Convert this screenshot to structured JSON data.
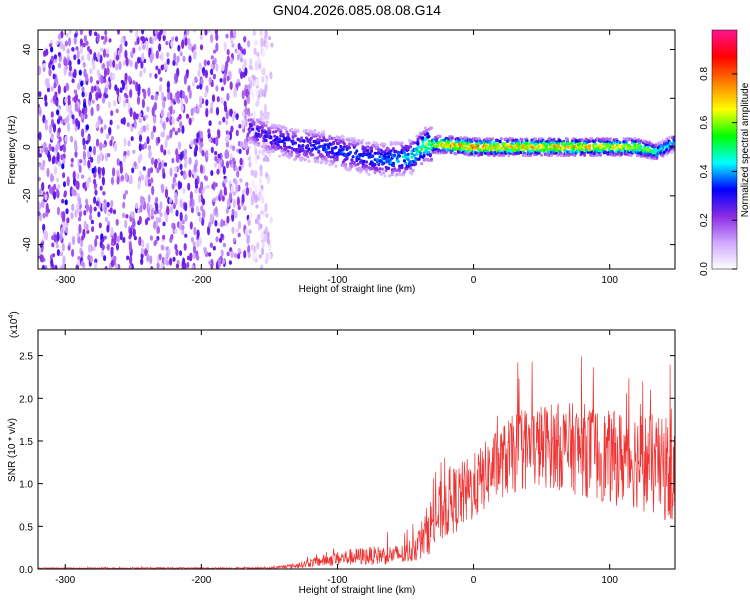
{
  "title": "GN04.2026.085.08.08.G14",
  "chart_data": [
    {
      "type": "heatmap",
      "name": "spectrogram",
      "xlabel": "Height of straight line (km)",
      "ylabel": "Frequency (Hz)",
      "xlim": [
        -320,
        148
      ],
      "ylim": [
        -50,
        48
      ],
      "xticks": [
        -300,
        -200,
        -100,
        0,
        100
      ],
      "yticks": [
        -40,
        -20,
        0,
        20,
        40
      ],
      "noise_region_x": [
        -320,
        -148
      ],
      "signal_track": [
        {
          "x": -165,
          "freq": 8,
          "amp": 0.3
        },
        {
          "x": -150,
          "freq": 4,
          "amp": 0.33
        },
        {
          "x": -130,
          "freq": 1,
          "amp": 0.36
        },
        {
          "x": -110,
          "freq": 0,
          "amp": 0.38
        },
        {
          "x": -90,
          "freq": -3,
          "amp": 0.4
        },
        {
          "x": -70,
          "freq": -5,
          "amp": 0.42
        },
        {
          "x": -58,
          "freq": -5,
          "amp": 0.45
        },
        {
          "x": -45,
          "freq": -4,
          "amp": 0.5
        },
        {
          "x": -35,
          "freq": 1,
          "amp": 0.62
        },
        {
          "x": -20,
          "freq": 1,
          "amp": 0.78
        },
        {
          "x": 0,
          "freq": 0,
          "amp": 0.85
        },
        {
          "x": 25,
          "freq": 0,
          "amp": 0.8
        },
        {
          "x": 50,
          "freq": 0,
          "amp": 0.78
        },
        {
          "x": 75,
          "freq": 0,
          "amp": 0.8
        },
        {
          "x": 100,
          "freq": 0,
          "amp": 0.76
        },
        {
          "x": 120,
          "freq": 0,
          "amp": 0.72
        },
        {
          "x": 135,
          "freq": -2,
          "amp": 0.55
        },
        {
          "x": 148,
          "freq": 2,
          "amp": 0.45
        }
      ]
    },
    {
      "type": "line",
      "name": "snr",
      "xlabel": "Height of straight line (km)",
      "ylabel": "SNR (10 * v/v)",
      "scale_label": "(x10",
      "scale_exp": "4",
      "color": "#ee3333",
      "xlim": [
        -320,
        148
      ],
      "ylim": [
        0,
        2.8
      ],
      "xticks": [
        -300,
        -200,
        -100,
        0,
        100
      ],
      "yticks": [
        0.0,
        0.5,
        1.0,
        1.5,
        2.0,
        2.5
      ],
      "ytick_labels": [
        "0.0",
        "0.5",
        "1.0",
        "1.5",
        "2.0",
        "2.5"
      ],
      "envelope": [
        {
          "x": -320,
          "mean": 0.01,
          "spread": 0.005
        },
        {
          "x": -150,
          "mean": 0.01,
          "spread": 0.01
        },
        {
          "x": -130,
          "mean": 0.04,
          "spread": 0.03
        },
        {
          "x": -110,
          "mean": 0.1,
          "spread": 0.07
        },
        {
          "x": -90,
          "mean": 0.14,
          "spread": 0.1
        },
        {
          "x": -70,
          "mean": 0.16,
          "spread": 0.11
        },
        {
          "x": -50,
          "mean": 0.17,
          "spread": 0.12
        },
        {
          "x": -40,
          "mean": 0.3,
          "spread": 0.2
        },
        {
          "x": -30,
          "mean": 0.55,
          "spread": 0.35
        },
        {
          "x": -20,
          "mean": 0.75,
          "spread": 0.4
        },
        {
          "x": 0,
          "mean": 0.95,
          "spread": 0.4
        },
        {
          "x": 15,
          "mean": 1.2,
          "spread": 0.4
        },
        {
          "x": 35,
          "mean": 1.4,
          "spread": 0.5
        },
        {
          "x": 55,
          "mean": 1.45,
          "spread": 0.5
        },
        {
          "x": 80,
          "mean": 1.4,
          "spread": 0.55
        },
        {
          "x": 100,
          "mean": 1.3,
          "spread": 0.55
        },
        {
          "x": 120,
          "mean": 1.3,
          "spread": 0.6
        },
        {
          "x": 148,
          "mean": 1.1,
          "spread": 0.6
        }
      ]
    }
  ],
  "colorbar": {
    "label": "Normalized spectral amplitude",
    "range": [
      0.0,
      0.98
    ],
    "ticks": [
      0.0,
      0.2,
      0.4,
      0.6,
      0.8
    ],
    "tick_labels": [
      "0.0",
      "0.2",
      "0.4",
      "0.6",
      "0.8"
    ],
    "stops": [
      "#ffffff",
      "#cfa6ff",
      "#8a2be2",
      "#0000ff",
      "#00ffff",
      "#00ff00",
      "#ffff00",
      "#ff8000",
      "#ff0000",
      "#ff1493"
    ]
  }
}
